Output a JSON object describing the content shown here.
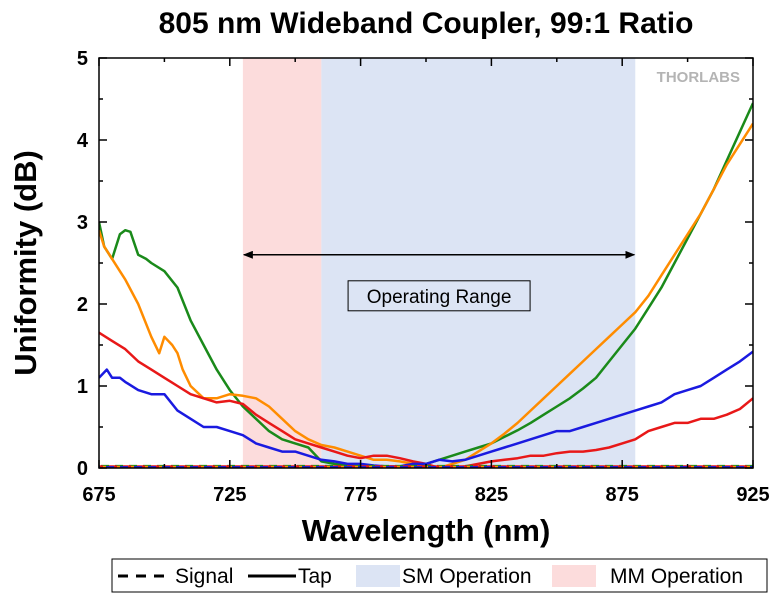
{
  "chart_data": {
    "type": "line",
    "title": "805 nm Wideband Coupler, 99:1 Ratio",
    "xlabel": "Wavelength (nm)",
    "ylabel": "Uniformity (dB)",
    "xlim": [
      675,
      925
    ],
    "ylim": [
      0,
      5
    ],
    "xticks": [
      675,
      725,
      775,
      825,
      875,
      925
    ],
    "yticks": [
      0,
      1,
      2,
      3,
      4,
      5
    ],
    "grid": false,
    "logo": "THORLABS",
    "bands": [
      {
        "name": "MM Operation",
        "x_start": 730,
        "x_end": 760,
        "color": "#fcdcdc"
      },
      {
        "name": "SM Operation",
        "x_start": 760,
        "x_end": 880,
        "color": "#dce4f4"
      }
    ],
    "annotation": {
      "text": "Operating Range",
      "x_start": 730,
      "x_end": 880,
      "y_arrow": 2.6,
      "y_text": 2.1
    },
    "series": [
      {
        "name": "",
        "color": "#1a8a1a",
        "style": "solid",
        "x": [
          675,
          677,
          680,
          683,
          685,
          687,
          690,
          693,
          695,
          700,
          705,
          710,
          715,
          720,
          725,
          730,
          735,
          740,
          745,
          750,
          755,
          760,
          765,
          770,
          775,
          780,
          785,
          790,
          795,
          800,
          805,
          810,
          815,
          820,
          825,
          830,
          835,
          840,
          845,
          850,
          855,
          860,
          865,
          870,
          875,
          880,
          885,
          890,
          895,
          900,
          905,
          910,
          915,
          920,
          925
        ],
        "y": [
          3.0,
          2.7,
          2.55,
          2.85,
          2.9,
          2.88,
          2.6,
          2.55,
          2.5,
          2.4,
          2.2,
          1.8,
          1.5,
          1.2,
          0.95,
          0.75,
          0.6,
          0.45,
          0.35,
          0.3,
          0.25,
          0.08,
          0.05,
          0.03,
          0.02,
          0.01,
          0.0,
          0.0,
          0.02,
          0.05,
          0.1,
          0.15,
          0.2,
          0.25,
          0.3,
          0.38,
          0.46,
          0.55,
          0.65,
          0.75,
          0.85,
          0.97,
          1.1,
          1.3,
          1.5,
          1.7,
          1.95,
          2.2,
          2.5,
          2.8,
          3.1,
          3.4,
          3.75,
          4.1,
          4.45
        ]
      },
      {
        "name": "",
        "color": "#ff8c00",
        "style": "solid",
        "x": [
          675,
          677,
          680,
          683,
          685,
          690,
          695,
          698,
          700,
          703,
          705,
          707,
          710,
          715,
          720,
          725,
          730,
          735,
          740,
          745,
          750,
          755,
          760,
          765,
          770,
          775,
          780,
          785,
          790,
          795,
          800,
          805,
          810,
          815,
          820,
          825,
          830,
          835,
          840,
          845,
          850,
          855,
          860,
          865,
          870,
          875,
          880,
          885,
          890,
          895,
          900,
          905,
          910,
          915,
          920,
          925
        ],
        "y": [
          2.9,
          2.7,
          2.55,
          2.4,
          2.3,
          2.0,
          1.6,
          1.4,
          1.6,
          1.5,
          1.4,
          1.2,
          1.0,
          0.85,
          0.85,
          0.9,
          0.88,
          0.85,
          0.75,
          0.6,
          0.45,
          0.35,
          0.28,
          0.25,
          0.2,
          0.15,
          0.1,
          0.1,
          0.08,
          0.05,
          0.0,
          0.0,
          0.05,
          0.1,
          0.2,
          0.3,
          0.42,
          0.55,
          0.7,
          0.85,
          1.0,
          1.15,
          1.3,
          1.45,
          1.6,
          1.75,
          1.9,
          2.1,
          2.35,
          2.6,
          2.85,
          3.1,
          3.4,
          3.7,
          3.95,
          4.2
        ]
      },
      {
        "name": "",
        "color": "#e81818",
        "style": "solid",
        "x": [
          675,
          680,
          685,
          690,
          695,
          700,
          705,
          710,
          715,
          720,
          725,
          730,
          735,
          740,
          745,
          750,
          755,
          760,
          765,
          770,
          775,
          780,
          785,
          790,
          795,
          800,
          805,
          810,
          815,
          820,
          825,
          830,
          835,
          840,
          845,
          850,
          855,
          860,
          865,
          870,
          875,
          880,
          885,
          890,
          895,
          900,
          905,
          910,
          915,
          920,
          925
        ],
        "y": [
          1.65,
          1.55,
          1.45,
          1.3,
          1.2,
          1.1,
          1.0,
          0.9,
          0.85,
          0.8,
          0.82,
          0.78,
          0.65,
          0.55,
          0.45,
          0.35,
          0.3,
          0.25,
          0.2,
          0.15,
          0.12,
          0.15,
          0.15,
          0.12,
          0.08,
          0.05,
          0.0,
          0.0,
          0.02,
          0.05,
          0.08,
          0.1,
          0.12,
          0.15,
          0.15,
          0.18,
          0.2,
          0.2,
          0.22,
          0.25,
          0.3,
          0.35,
          0.45,
          0.5,
          0.55,
          0.55,
          0.6,
          0.6,
          0.65,
          0.72,
          0.85
        ]
      },
      {
        "name": "",
        "color": "#1a1ae0",
        "style": "solid",
        "x": [
          675,
          678,
          680,
          683,
          685,
          690,
          695,
          700,
          705,
          710,
          715,
          720,
          725,
          730,
          735,
          740,
          745,
          750,
          755,
          760,
          765,
          770,
          775,
          780,
          785,
          790,
          795,
          800,
          805,
          810,
          815,
          820,
          825,
          830,
          835,
          840,
          845,
          850,
          855,
          860,
          865,
          870,
          875,
          880,
          885,
          890,
          895,
          900,
          905,
          910,
          915,
          920,
          925
        ],
        "y": [
          1.1,
          1.2,
          1.1,
          1.1,
          1.05,
          0.95,
          0.9,
          0.9,
          0.7,
          0.6,
          0.5,
          0.5,
          0.45,
          0.4,
          0.3,
          0.25,
          0.2,
          0.2,
          0.15,
          0.1,
          0.08,
          0.05,
          0.05,
          0.03,
          0.02,
          0.02,
          0.05,
          0.05,
          0.1,
          0.08,
          0.1,
          0.15,
          0.2,
          0.25,
          0.3,
          0.35,
          0.4,
          0.45,
          0.45,
          0.5,
          0.55,
          0.6,
          0.65,
          0.7,
          0.75,
          0.8,
          0.9,
          0.95,
          1.0,
          1.1,
          1.2,
          1.3,
          1.42
        ]
      },
      {
        "name": "",
        "color": "#1a8a1a",
        "style": "dashed",
        "x": [
          675,
          925
        ],
        "y": [
          0.02,
          0.02
        ]
      },
      {
        "name": "",
        "color": "#ff8c00",
        "style": "dashed",
        "x": [
          675,
          925
        ],
        "y": [
          0.01,
          0.01
        ]
      },
      {
        "name": "",
        "color": "#e81818",
        "style": "dashed",
        "x": [
          675,
          925
        ],
        "y": [
          0.015,
          0.015
        ]
      },
      {
        "name": "",
        "color": "#1a1ae0",
        "style": "dashed",
        "x": [
          675,
          925
        ],
        "y": [
          0.005,
          0.005
        ]
      }
    ],
    "legend": {
      "placement": "bottom",
      "items": [
        {
          "label": "Signal",
          "kind": "dashed-line",
          "color": "#000000"
        },
        {
          "label": "Tap",
          "kind": "solid-line",
          "color": "#000000"
        },
        {
          "label": "SM Operation",
          "kind": "patch",
          "color": "#dce4f4"
        },
        {
          "label": "MM Operation",
          "kind": "patch",
          "color": "#fcdcdc"
        }
      ]
    }
  }
}
